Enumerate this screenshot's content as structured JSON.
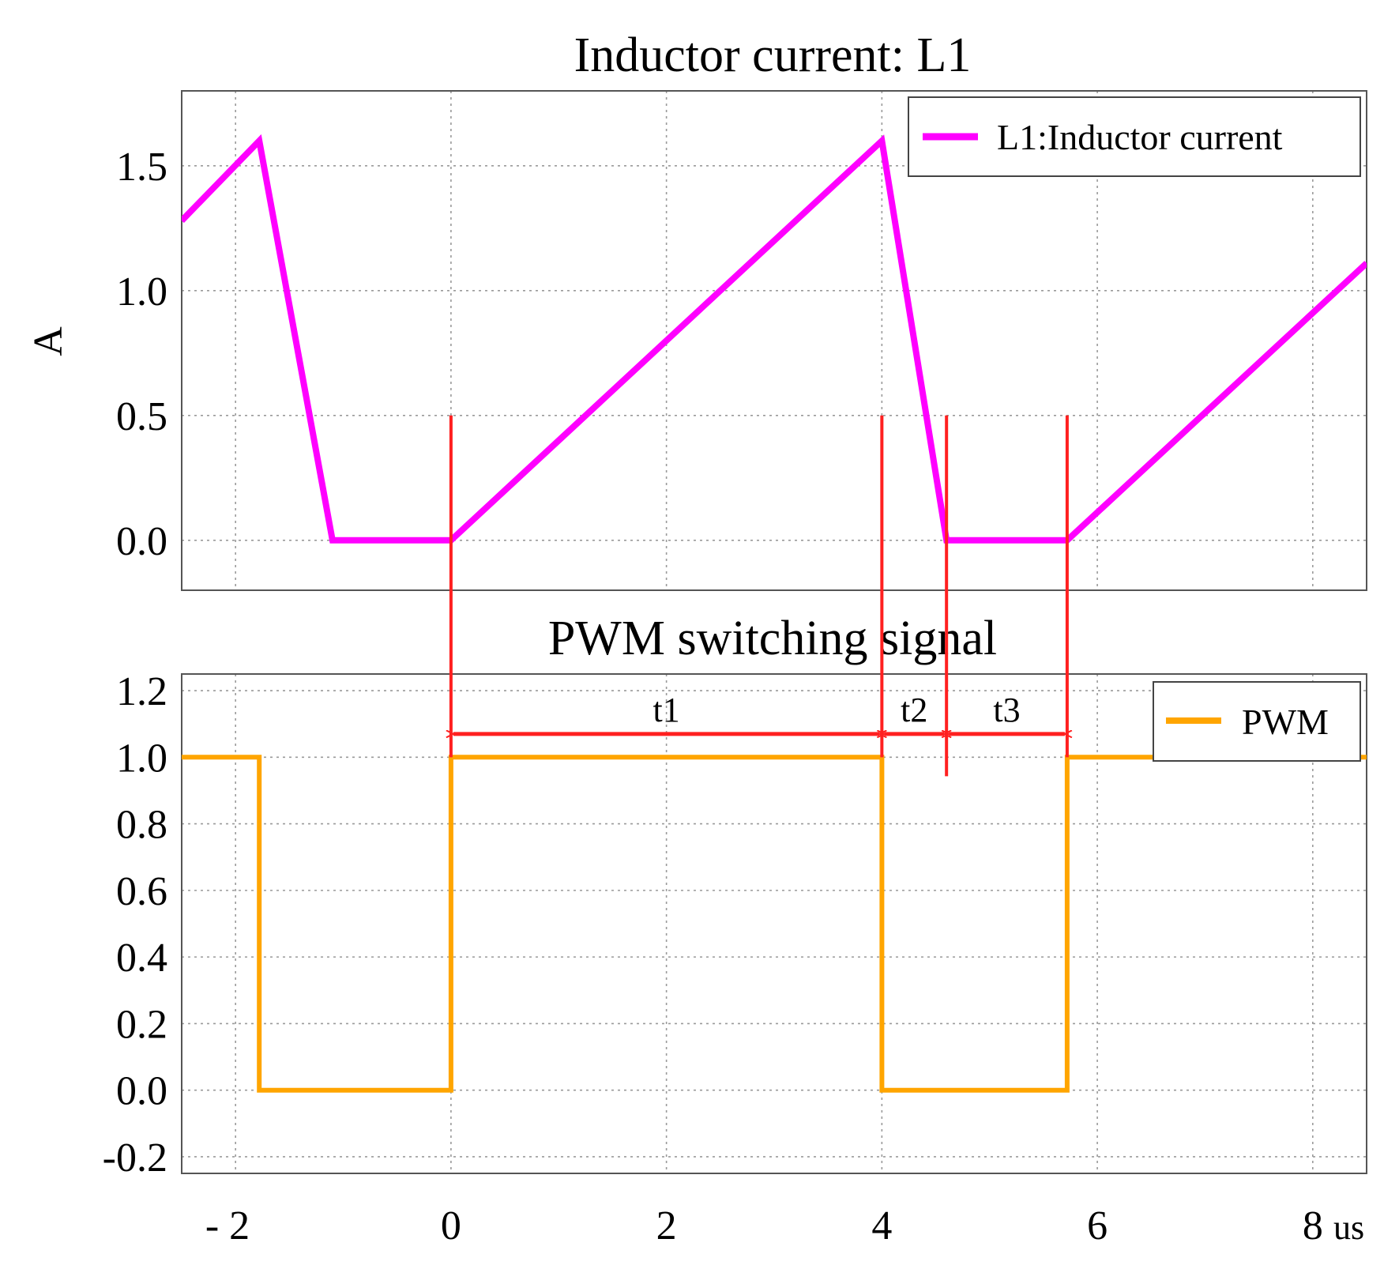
{
  "chart_data": [
    {
      "type": "line",
      "title": "Inductor current: L1",
      "ylabel": "A",
      "xlim": [
        -2.5,
        8.5
      ],
      "ylim": [
        -0.2,
        1.8
      ],
      "yticks": [
        0.0,
        0.5,
        1.0,
        1.5
      ],
      "ytick_labels": [
        "0.0",
        "0.5",
        "1.0",
        "1.5"
      ],
      "xticks": [
        -2,
        0,
        2,
        4,
        6,
        8
      ],
      "grid": true,
      "legend_position": "top-right",
      "series": [
        {
          "name": "L1:Inductor current",
          "color": "#ff00ff",
          "x": [
            -2.5,
            -1.78,
            -1.1,
            0.0,
            4.0,
            4.6,
            5.72,
            8.5
          ],
          "y": [
            1.28,
            1.6,
            0.0,
            0.0,
            1.6,
            0.0,
            0.0,
            1.11
          ]
        }
      ]
    },
    {
      "type": "line",
      "title": "PWM switching signal",
      "ylabel": "",
      "xlabel_unit": "us",
      "xlim": [
        -2.5,
        8.5
      ],
      "ylim": [
        -0.25,
        1.25
      ],
      "yticks": [
        -0.2,
        0.0,
        0.2,
        0.4,
        0.6,
        0.8,
        1.0,
        1.2
      ],
      "ytick_labels": [
        "-0.2",
        "0.0",
        "0.2",
        "0.4",
        "0.6",
        "0.8",
        "1.0",
        "1.2"
      ],
      "xticks": [
        -2,
        0,
        2,
        4,
        6,
        8
      ],
      "xtick_labels": [
        "- 2",
        "0",
        "2",
        "4",
        "6",
        "8"
      ],
      "grid": true,
      "legend_position": "top-right",
      "series": [
        {
          "name": "PWM",
          "color": "#ffa500",
          "x": [
            -2.5,
            -1.78,
            -1.78,
            0.0,
            0.0,
            4.0,
            4.0,
            5.72,
            5.72,
            8.5
          ],
          "y": [
            1.0,
            1.0,
            0.0,
            0.0,
            1.0,
            1.0,
            0.0,
            0.0,
            1.0,
            1.0
          ]
        }
      ]
    }
  ],
  "annotations": {
    "color": "#ff2020",
    "markers_x": [
      0.0,
      4.0,
      4.6,
      5.72
    ],
    "intervals": [
      {
        "label": "t1",
        "from": 0.0,
        "to": 4.0
      },
      {
        "label": "t2",
        "from": 4.0,
        "to": 4.6
      },
      {
        "label": "t3",
        "from": 4.6,
        "to": 5.72
      }
    ]
  }
}
